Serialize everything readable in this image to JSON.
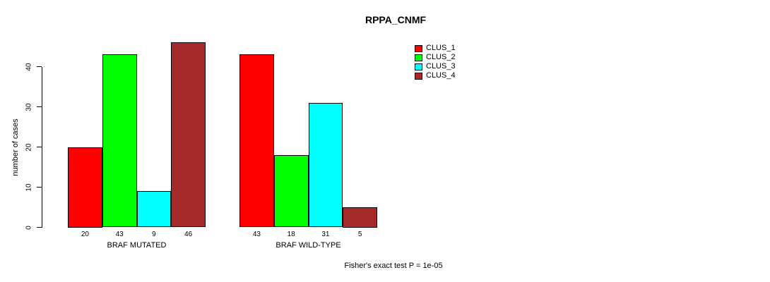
{
  "chart_data": {
    "type": "bar",
    "title": "RPPA_CNMF",
    "ylabel": "number of cases",
    "xlabel": "",
    "ylim": [
      0,
      46
    ],
    "yticks": [
      0,
      10,
      20,
      30,
      40
    ],
    "categories": [
      "BRAF MUTATED",
      "BRAF WILD-TYPE"
    ],
    "series": [
      {
        "name": "CLUS_1",
        "color": "#FF0000",
        "values": [
          20,
          43
        ]
      },
      {
        "name": "CLUS_2",
        "color": "#00FF00",
        "values": [
          43,
          18
        ]
      },
      {
        "name": "CLUS_3",
        "color": "#00FFFF",
        "values": [
          9,
          31
        ]
      },
      {
        "name": "CLUS_4",
        "color": "#A52A2A",
        "values": [
          46,
          5
        ]
      }
    ],
    "value_labels_shown": true,
    "legend_position": "top-right",
    "grid": false,
    "annotation": "Fisher's exact test P = 1e-05"
  }
}
